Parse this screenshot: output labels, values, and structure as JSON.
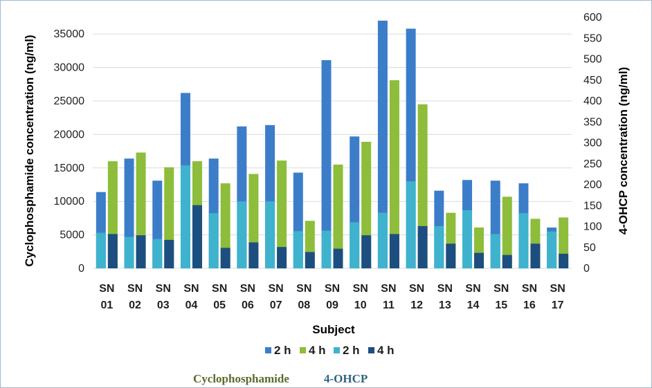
{
  "chart_data": {
    "type": "bar",
    "title": "",
    "xlabel": "Subject",
    "ylabel": "Cyclophosphamide concentration (ng/ml)",
    "y2label": "4-OHCP concentration (ng/ml)",
    "ylim": [
      0,
      37500
    ],
    "y2lim": [
      0,
      600
    ],
    "yticks": [
      "0",
      "5000",
      "10000",
      "15000",
      "20000",
      "25000",
      "30000",
      "35000"
    ],
    "y2ticks": [
      "0",
      "50",
      "100",
      "150",
      "200",
      "250",
      "300",
      "350",
      "400",
      "450",
      "500",
      "550",
      "600"
    ],
    "categories": [
      {
        "line1": "SN",
        "line2": "01"
      },
      {
        "line1": "SN",
        "line2": "02"
      },
      {
        "line1": "SN",
        "line2": "03"
      },
      {
        "line1": "SN",
        "line2": "04"
      },
      {
        "line1": "SN",
        "line2": "05"
      },
      {
        "line1": "SN",
        "line2": "06"
      },
      {
        "line1": "SN",
        "line2": "07"
      },
      {
        "line1": "SN",
        "line2": "08"
      },
      {
        "line1": "SN",
        "line2": "09"
      },
      {
        "line1": "SN",
        "line2": "10"
      },
      {
        "line1": "SN",
        "line2": "11"
      },
      {
        "line1": "SN",
        "line2": "12"
      },
      {
        "line1": "SN",
        "line2": "13"
      },
      {
        "line1": "SN",
        "line2": "14"
      },
      {
        "line1": "SN",
        "line2": "15"
      },
      {
        "line1": "SN",
        "line2": "16"
      },
      {
        "line1": "SN",
        "line2": "17"
      }
    ],
    "series": [
      {
        "name": "2 h",
        "group": "Cyclophosphamide",
        "axis": "left",
        "color": "#3c7dc9",
        "values": [
          11400,
          16400,
          13100,
          26200,
          16400,
          21200,
          21400,
          14300,
          31100,
          19700,
          37000,
          35800,
          11600,
          13200,
          13100,
          12700,
          6100
        ]
      },
      {
        "name": "4 h",
        "group": "Cyclophosphamide",
        "axis": "left",
        "color": "#8dbd3a",
        "values": [
          16000,
          17300,
          15100,
          16000,
          12700,
          14100,
          16100,
          7100,
          15500,
          18900,
          28100,
          24500,
          8300,
          6100,
          10700,
          7400,
          7600
        ]
      },
      {
        "name": "2 h",
        "group": "4-OHCP",
        "axis": "right",
        "color": "#3fb3cd",
        "values": [
          85,
          75,
          70,
          246,
          132,
          160,
          160,
          89,
          90,
          110,
          133,
          208,
          101,
          139,
          82,
          132,
          88
        ]
      },
      {
        "name": "4 h",
        "group": "4-OHCP",
        "axis": "right",
        "color": "#1d4e80",
        "values": [
          82,
          79,
          68,
          151,
          49,
          62,
          51,
          39,
          47,
          79,
          82,
          101,
          59,
          37,
          32,
          59,
          35
        ]
      }
    ],
    "legend": {
      "position": "bottom",
      "group_labels": [
        {
          "text": "Cyclophosphamide",
          "color": "#5a6b2a"
        },
        {
          "text": "4-OHCP",
          "color": "#2f6480"
        }
      ]
    },
    "grid": true
  }
}
